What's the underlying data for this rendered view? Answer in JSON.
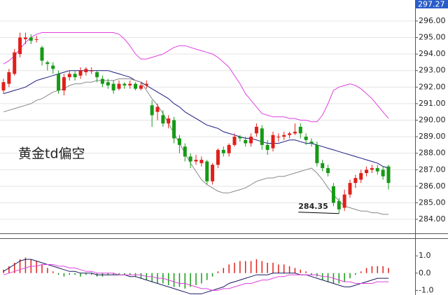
{
  "chart_data": [
    {
      "type": "candlestick",
      "annotation": "黄金td偏空",
      "up_color": "#e0201a",
      "down_color": "#169a16",
      "ylim": [
        283.28,
        297.27
      ],
      "yticks": [
        {
          "value": 284,
          "label": "284.00"
        },
        {
          "value": 285,
          "label": "285.00"
        },
        {
          "value": 286,
          "label": "286.00"
        },
        {
          "value": 287,
          "label": "287.00"
        },
        {
          "value": 288,
          "label": "288.00"
        },
        {
          "value": 289,
          "label": "289.00"
        },
        {
          "value": 290,
          "label": "290.00"
        },
        {
          "value": 291,
          "label": "291.00"
        },
        {
          "value": 292,
          "label": "292.00"
        },
        {
          "value": 293,
          "label": "293.00"
        },
        {
          "value": 294,
          "label": "294.00"
        },
        {
          "value": 295,
          "label": "295.00"
        },
        {
          "value": 296,
          "label": "296.00"
        }
      ],
      "grid": true,
      "open": [
        291.8,
        292.2,
        292.8,
        294.0,
        294.9,
        295.0,
        294.9,
        294.4,
        293.5,
        293.3,
        292.8,
        291.8,
        292.6,
        292.8,
        292.7,
        292.9,
        293.0,
        292.9,
        292.5,
        292.3,
        292.2,
        291.9,
        292.2,
        292.1,
        292.2,
        291.9,
        292.1,
        290.9,
        290.5,
        290.3,
        289.8,
        290.0,
        288.9,
        288.4,
        287.8,
        287.5,
        287.4,
        287.5,
        286.3,
        287.3,
        288.2,
        288.0,
        288.5,
        289.0,
        288.8,
        288.6,
        289.2,
        289.5,
        288.5,
        288.3,
        289.0,
        289.0,
        289.1,
        289.2,
        289.6,
        289.0,
        288.7,
        288.5,
        287.4,
        287.1,
        286.0,
        285.1,
        284.7,
        285.5,
        286.2,
        286.4,
        286.8,
        287.0,
        287.1,
        287.0,
        287.2
      ],
      "high": [
        292.5,
        293.1,
        294.3,
        295.3,
        295.3,
        295.2,
        295.1,
        294.5,
        293.6,
        293.5,
        293.0,
        292.8,
        293.0,
        293.0,
        293.2,
        293.2,
        293.2,
        293.0,
        292.7,
        292.5,
        292.4,
        292.4,
        292.3,
        292.4,
        292.3,
        292.3,
        292.4,
        291.2,
        291.0,
        290.6,
        290.3,
        290.2,
        289.1,
        288.6,
        288.0,
        287.9,
        287.8,
        287.6,
        287.4,
        288.3,
        288.4,
        288.6,
        289.2,
        289.1,
        289.0,
        289.2,
        289.8,
        289.7,
        288.8,
        289.3,
        289.2,
        289.3,
        289.3,
        289.8,
        289.8,
        289.2,
        288.9,
        288.7,
        287.6,
        287.3,
        286.2,
        285.3,
        285.8,
        286.4,
        286.7,
        287.0,
        287.2,
        287.3,
        287.3,
        287.2,
        287.3
      ],
      "low": [
        291.6,
        292.0,
        292.7,
        293.8,
        294.6,
        294.6,
        294.7,
        293.3,
        293.0,
        292.8,
        291.6,
        291.5,
        292.4,
        292.4,
        292.5,
        292.7,
        292.8,
        292.3,
        292.0,
        291.9,
        291.6,
        291.8,
        291.9,
        291.9,
        291.8,
        291.8,
        291.9,
        289.6,
        290.0,
        289.6,
        289.5,
        288.6,
        288.0,
        287.5,
        287.1,
        287.3,
        287.2,
        286.1,
        286.1,
        287.1,
        287.8,
        287.8,
        288.4,
        288.7,
        288.4,
        288.4,
        289.0,
        288.2,
        287.9,
        288.1,
        288.7,
        288.8,
        288.9,
        289.1,
        288.9,
        288.5,
        288.4,
        287.2,
        286.9,
        286.6,
        284.8,
        284.35,
        284.5,
        285.3,
        285.9,
        286.2,
        286.6,
        286.8,
        286.7,
        286.4,
        285.8
      ],
      "close": [
        292.3,
        292.9,
        294.1,
        295.0,
        295.0,
        294.8,
        294.9,
        293.6,
        293.4,
        293.1,
        291.8,
        292.6,
        292.8,
        292.6,
        293.0,
        293.1,
        293.0,
        292.6,
        292.2,
        292.1,
        291.8,
        292.2,
        292.1,
        292.2,
        291.9,
        292.1,
        292.2,
        290.3,
        290.8,
        289.8,
        290.1,
        288.9,
        288.5,
        287.8,
        287.5,
        287.6,
        287.6,
        286.3,
        287.3,
        288.2,
        288.0,
        288.5,
        289.0,
        288.9,
        288.6,
        289.0,
        289.6,
        288.5,
        288.2,
        289.1,
        289.0,
        289.1,
        289.2,
        289.3,
        289.2,
        288.8,
        288.6,
        287.4,
        287.1,
        286.8,
        285.0,
        284.6,
        285.5,
        286.2,
        286.5,
        286.8,
        287.0,
        287.1,
        286.9,
        286.6,
        286.2
      ],
      "series": [
        {
          "color": "#e040e0",
          "values": [
            293.4,
            293.6,
            293.9,
            294.3,
            294.7,
            295.0,
            295.2,
            295.3,
            295.3,
            295.3,
            295.3,
            295.3,
            295.3,
            295.3,
            295.3,
            295.3,
            295.3,
            295.3,
            295.3,
            295.3,
            295.3,
            295.2,
            294.9,
            294.5,
            294.0,
            293.7,
            293.7,
            293.8,
            293.9,
            294.0,
            294.2,
            294.4,
            294.5,
            294.5,
            294.4,
            294.3,
            294.2,
            294.1,
            294.0,
            293.8,
            293.5,
            293.2,
            292.7,
            292.2,
            291.6,
            291.2,
            290.8,
            290.4,
            290.3,
            290.2,
            290.2,
            290.2,
            290.1,
            290.1,
            290.0,
            290.0,
            289.9,
            289.9,
            290.3,
            291.0,
            291.8,
            292.0,
            292.1,
            292.2,
            292.1,
            291.9,
            291.6,
            291.3,
            290.9,
            290.5,
            290.1
          ]
        },
        {
          "color": "#1a1a80",
          "values": [
            291.6,
            291.7,
            291.8,
            291.9,
            292.0,
            292.2,
            292.4,
            292.5,
            292.6,
            292.7,
            292.8,
            292.9,
            293.0,
            293.0,
            293.0,
            293.0,
            293.0,
            293.0,
            293.0,
            293.0,
            292.9,
            292.8,
            292.7,
            292.6,
            292.4,
            292.3,
            292.1,
            291.9,
            291.7,
            291.5,
            291.3,
            291.0,
            290.8,
            290.5,
            290.3,
            290.1,
            289.9,
            289.7,
            289.6,
            289.5,
            289.3,
            289.2,
            289.1,
            289.0,
            288.9,
            288.9,
            288.8,
            288.7,
            288.6,
            288.6,
            288.6,
            288.7,
            288.8,
            288.8,
            288.7,
            288.6,
            288.6,
            288.5,
            288.4,
            288.3,
            288.2,
            288.1,
            288.0,
            287.9,
            287.8,
            287.7,
            287.6,
            287.5,
            287.4,
            287.2,
            287.1
          ]
        },
        {
          "color": "#888888",
          "values": [
            290.5,
            290.6,
            290.7,
            290.8,
            290.9,
            291.0,
            291.2,
            291.3,
            291.5,
            291.7,
            291.8,
            291.9,
            292.1,
            292.2,
            292.2,
            292.3,
            292.3,
            292.4,
            292.4,
            292.4,
            292.4,
            292.5,
            292.5,
            292.5,
            292.4,
            292.3,
            291.8,
            291.3,
            290.9,
            290.4,
            289.8,
            289.2,
            288.6,
            288.0,
            287.4,
            286.9,
            286.4,
            286.1,
            285.9,
            285.7,
            285.6,
            285.6,
            285.7,
            285.8,
            285.9,
            286.1,
            286.3,
            286.4,
            286.5,
            286.5,
            286.6,
            286.6,
            286.7,
            286.8,
            286.9,
            287.0,
            287.1,
            286.8,
            286.4,
            285.9,
            285.5,
            285.1,
            284.8,
            284.7,
            284.6,
            284.5,
            284.5,
            284.4,
            284.4,
            284.3,
            284.3
          ]
        }
      ]
    },
    {
      "type": "macd",
      "up_color": "#e0201a",
      "down_color": "#169a16",
      "ylim": [
        -1.27,
        1.82
      ],
      "yticks": [
        {
          "value": 1,
          "label": "1.0"
        },
        {
          "value": 0,
          "label": "0.0"
        },
        {
          "value": -1,
          "label": "-1.0"
        }
      ],
      "values": [
        0.2,
        0.4,
        0.6,
        0.8,
        0.9,
        0.8,
        0.7,
        0.5,
        0.3,
        0.1,
        -0.1,
        -0.2,
        -0.1,
        -0.1,
        -0.2,
        -0.1,
        -0.1,
        -0.2,
        -0.2,
        -0.1,
        -0.1,
        -0.1,
        -0.1,
        -0.1,
        -0.2,
        -0.3,
        -0.4,
        -0.5,
        -0.6,
        -0.6,
        -0.7,
        -0.8,
        -0.8,
        -0.9,
        -0.8,
        -0.7,
        -0.6,
        -0.4,
        -0.2,
        0.1,
        0.3,
        0.5,
        0.6,
        0.7,
        0.7,
        0.7,
        0.8,
        0.7,
        0.6,
        0.6,
        0.5,
        0.5,
        0.4,
        0.3,
        0.2,
        0.1,
        -0.1,
        -0.2,
        -0.4,
        -0.5,
        -0.6,
        -0.6,
        -0.5,
        -0.3,
        -0.1,
        0.1,
        0.3,
        0.4,
        0.4,
        0.4,
        0.3
      ],
      "series": [
        {
          "color": "#1a1a60",
          "values": [
            0.1,
            0.3,
            0.5,
            0.7,
            0.8,
            0.8,
            0.7,
            0.6,
            0.5,
            0.4,
            0.3,
            0.2,
            0.1,
            0.1,
            0.0,
            0.0,
            0.0,
            -0.1,
            -0.1,
            -0.1,
            -0.1,
            -0.1,
            -0.1,
            -0.2,
            -0.2,
            -0.3,
            -0.4,
            -0.5,
            -0.6,
            -0.7,
            -0.8,
            -0.9,
            -1.0,
            -1.1,
            -1.2,
            -1.2,
            -1.2,
            -1.1,
            -1.0,
            -0.9,
            -0.8,
            -0.6,
            -0.5,
            -0.4,
            -0.3,
            -0.2,
            -0.1,
            -0.1,
            -0.1,
            0.0,
            0.0,
            0.0,
            0.0,
            0.0,
            -0.1,
            -0.1,
            -0.2,
            -0.3,
            -0.4,
            -0.5,
            -0.6,
            -0.7,
            -0.8,
            -0.8,
            -0.7,
            -0.6,
            -0.5,
            -0.4,
            -0.3,
            -0.3,
            -0.3
          ]
        },
        {
          "color": "#e040e0",
          "values": [
            -0.1,
            0.0,
            0.1,
            0.2,
            0.3,
            0.4,
            0.4,
            0.5,
            0.5,
            0.5,
            0.4,
            0.4,
            0.3,
            0.3,
            0.2,
            0.1,
            0.1,
            0.0,
            0.0,
            0.0,
            0.0,
            -0.1,
            -0.1,
            -0.1,
            -0.1,
            -0.1,
            -0.2,
            -0.2,
            -0.3,
            -0.3,
            -0.4,
            -0.5,
            -0.6,
            -0.6,
            -0.7,
            -0.8,
            -0.9,
            -0.9,
            -1.0,
            -1.0,
            -0.9,
            -0.9,
            -0.8,
            -0.7,
            -0.6,
            -0.6,
            -0.5,
            -0.4,
            -0.4,
            -0.3,
            -0.2,
            -0.2,
            -0.1,
            -0.1,
            -0.1,
            -0.1,
            -0.1,
            -0.1,
            -0.2,
            -0.2,
            -0.3,
            -0.4,
            -0.5,
            -0.5,
            -0.6,
            -0.6,
            -0.6,
            -0.6,
            -0.5,
            -0.5,
            -0.5
          ]
        }
      ]
    }
  ]
}
